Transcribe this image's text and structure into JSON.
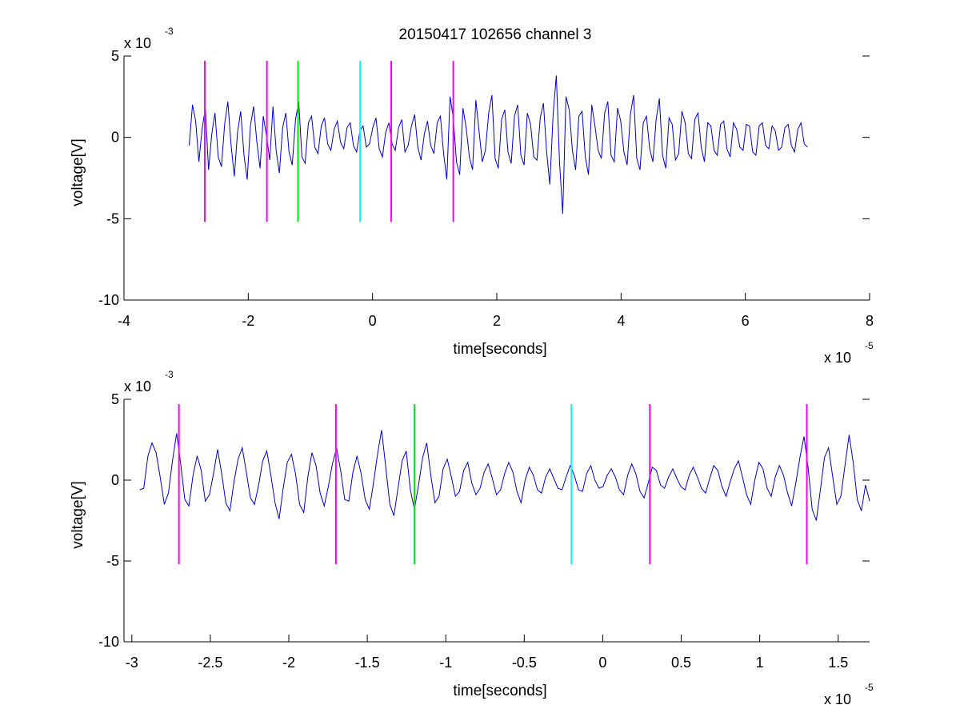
{
  "title": "20150417 102656 channel 3",
  "chart_data": [
    {
      "type": "line",
      "xlabel": "time[seconds]",
      "ylabel": "voltage[V]",
      "xlim": [
        -4,
        8
      ],
      "ylim": [
        -10,
        5
      ],
      "xticks": [
        -4,
        -2,
        0,
        2,
        4,
        6,
        8
      ],
      "yticks": [
        -10,
        -5,
        0,
        5
      ],
      "x_multiplier": {
        "base": "x 10",
        "exponent": "-5"
      },
      "y_multiplier": {
        "base": "x 10",
        "exponent": "-3"
      },
      "series": [
        {
          "color": "#0000cc",
          "x_start": -2.95,
          "x_end": 7.0,
          "values": [
            -0.5,
            2.0,
            1.0,
            -1.5,
            0.5,
            1.8,
            -2.0,
            0.2,
            1.5,
            -1.2,
            -1.8,
            0.8,
            2.2,
            -0.5,
            -2.4,
            0.3,
            1.6,
            -1.1,
            -2.6,
            0.7,
            1.9,
            -0.3,
            -1.9,
            1.3,
            0.1,
            -1.4,
            1.9,
            -0.8,
            -2.2,
            0.6,
            1.5,
            -0.9,
            -1.7,
            1.1,
            2.2,
            -1.2,
            -1.6,
            0.9,
            1.3,
            -0.6,
            -1.0,
            0.7,
            1.2,
            -0.4,
            -0.8,
            0.5,
            1.0,
            -0.3,
            -0.7,
            0.6,
            0.9,
            -0.5,
            -0.9,
            0.4,
            0.7,
            -0.6,
            -0.4,
            0.6,
            1.2,
            -0.7,
            -1.2,
            0.3,
            0.9,
            -0.4,
            -0.8,
            0.6,
            1.1,
            -0.9,
            -0.5,
            0.7,
            1.4,
            -0.6,
            -1.4,
            0.2,
            1.0,
            -0.5,
            -1.0,
            0.9,
            1.3,
            -1.0,
            -2.6,
            2.5,
            1.2,
            -1.5,
            -2.3,
            1.8,
            0.6,
            -1.2,
            -2.0,
            2.3,
            0.4,
            -1.5,
            -0.8,
            1.5,
            2.6,
            -1.3,
            -1.9,
            1.1,
            1.7,
            -0.9,
            -1.6,
            1.3,
            2.0,
            -1.1,
            -1.7,
            1.5,
            0.8,
            -1.2,
            -1.4,
            1.2,
            2.1,
            -0.9,
            -2.9,
            1.4,
            3.8,
            -1.5,
            -4.7,
            2.5,
            1.7,
            -0.8,
            -2.0,
            1.3,
            1.6,
            -1.2,
            -2.3,
            2.0,
            0.7,
            -0.8,
            -1.3,
            1.5,
            2.2,
            -1.1,
            -1.5,
            1.8,
            1.0,
            -0.9,
            -1.7,
            1.4,
            2.6,
            -1.3,
            -2.0,
            0.9,
            1.3,
            -0.7,
            -1.5,
            1.1,
            2.4,
            -1.1,
            -1.9,
            1.2,
            0.8,
            -1.4,
            -1.0,
            1.6,
            0.9,
            -1.0,
            -1.3,
            1.1,
            1.5,
            -0.6,
            -1.5,
            0.9,
            0.7,
            -0.8,
            -1.1,
            0.8,
            1.0,
            -0.7,
            -1.2,
            0.9,
            0.5,
            -0.6,
            -0.8,
            0.8,
            0.7,
            -0.9,
            -1.1,
            0.7,
            0.9,
            -0.5,
            -0.7,
            0.7,
            0.4,
            -0.8,
            -0.6,
            0.6,
            0.8,
            -0.5,
            -0.9,
            0.5,
            0.9,
            -0.4,
            -0.6
          ]
        }
      ],
      "markers": [
        {
          "x": -2.7,
          "color": "#ff00ff"
        },
        {
          "x": -1.7,
          "color": "#ff00ff"
        },
        {
          "x": -1.2,
          "color": "#00ee00"
        },
        {
          "x": -0.2,
          "color": "#00ffff"
        },
        {
          "x": 0.3,
          "color": "#ff00ff"
        },
        {
          "x": 1.3,
          "color": "#ff00ff"
        }
      ],
      "marker_range": [
        -5.2,
        4.7
      ]
    },
    {
      "type": "line",
      "xlabel": "time[seconds]",
      "ylabel": "voltage[V]",
      "xlim": [
        -3.05,
        1.7
      ],
      "ylim": [
        -10,
        5
      ],
      "xticks": [
        -3,
        -2.5,
        -2,
        -1.5,
        -1,
        -0.5,
        0,
        0.5,
        1,
        1.5
      ],
      "yticks": [
        -10,
        -5,
        0,
        5
      ],
      "x_multiplier": {
        "base": "x 10",
        "exponent": "-5"
      },
      "y_multiplier": {
        "base": "x 10",
        "exponent": "-3"
      },
      "series": [
        {
          "color": "#0000cc",
          "x_start": -2.95,
          "x_end": 1.7,
          "values": [
            -0.6,
            -0.5,
            1.5,
            2.3,
            1.7,
            0.2,
            -1.5,
            -0.8,
            1.2,
            2.9,
            1.0,
            -1.2,
            -1.6,
            0.3,
            1.5,
            0.6,
            -1.3,
            -0.9,
            0.4,
            1.9,
            0.4,
            -1.4,
            -1.9,
            -0.1,
            1.3,
            2.0,
            0.5,
            -1.1,
            -1.5,
            -0.3,
            1.2,
            1.8,
            0.3,
            -1.4,
            -2.4,
            -0.5,
            1.1,
            1.6,
            0.4,
            -1.5,
            -2.0,
            0.2,
            1.7,
            0.9,
            -0.8,
            -1.6,
            -0.4,
            1.0,
            2.0,
            0.6,
            -1.2,
            -1.3,
            0.5,
            1.5,
            0.4,
            -1.2,
            -1.8,
            -0.2,
            1.6,
            3.1,
            0.8,
            -1.5,
            -2.2,
            -0.5,
            1.2,
            1.8,
            -0.6,
            -1.8,
            -0.3,
            1.4,
            2.3,
            0.3,
            -1.4,
            -1.0,
            0.7,
            1.3,
            0.2,
            -1.0,
            -0.7,
            0.6,
            1.1,
            -0.2,
            -0.9,
            -0.5,
            0.5,
            1.0,
            0.1,
            -0.9,
            -0.6,
            0.4,
            1.1,
            0.5,
            -0.7,
            -1.4,
            0.0,
            0.8,
            0.3,
            -0.6,
            -0.8,
            0.2,
            0.7,
            0.1,
            -0.5,
            -0.6,
            0.2,
            0.9,
            0.3,
            -0.6,
            -0.7,
            0.4,
            0.9,
            0.0,
            -0.5,
            -0.4,
            0.3,
            0.7,
            0.2,
            -0.6,
            -0.9,
            0.3,
            1.0,
            0.4,
            -0.7,
            -1.1,
            -0.2,
            0.8,
            0.6,
            -0.3,
            -0.5,
            0.2,
            0.7,
            0.1,
            -0.4,
            -0.6,
            0.3,
            0.8,
            0.2,
            -0.5,
            -0.8,
            0.1,
            0.9,
            0.6,
            -0.4,
            -1.0,
            -0.1,
            0.7,
            1.2,
            0.2,
            -0.9,
            -1.5,
            0.0,
            1.1,
            0.7,
            -0.5,
            -1.0,
            0.2,
            0.9,
            0.3,
            -0.8,
            -1.6,
            -0.2,
            1.4,
            2.7,
            0.8,
            -1.8,
            -2.5,
            -0.6,
            1.4,
            2.0,
            0.2,
            -1.5,
            -1.0,
            0.9,
            2.8,
            1.1,
            -1.2,
            -1.9,
            -0.3,
            -1.3
          ]
        }
      ],
      "markers": [
        {
          "x": -2.7,
          "color": "#ff00ff"
        },
        {
          "x": -1.7,
          "color": "#ff00ff"
        },
        {
          "x": -1.2,
          "color": "#00ee00"
        },
        {
          "x": -0.2,
          "color": "#00ffff"
        },
        {
          "x": 0.3,
          "color": "#ff00ff"
        },
        {
          "x": 1.3,
          "color": "#ff00ff"
        }
      ],
      "marker_range": [
        -5.2,
        4.7
      ]
    }
  ]
}
